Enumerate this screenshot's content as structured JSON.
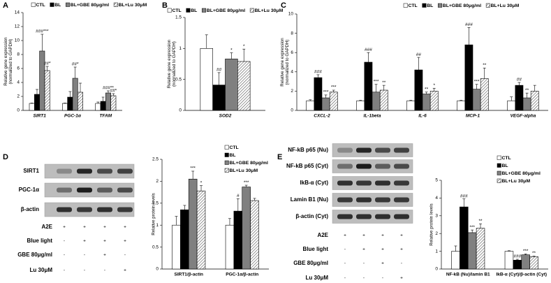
{
  "chart_data": [
    {
      "type": "bar",
      "panel": "A",
      "ylabel": [
        "Relative gene expression",
        "(normalized to GAPDH)"
      ],
      "categories": [
        "SIRT1",
        "PGC-1α",
        "TFAM"
      ],
      "italic_categories": true,
      "ylim": [
        0,
        14
      ],
      "yticks": [
        0,
        2,
        4,
        6,
        8,
        10,
        12,
        14
      ],
      "series": [
        {
          "name": "CTL",
          "color": "#ffffff",
          "values": [
            1,
            1,
            1
          ],
          "errors": [
            0.05,
            0.05,
            0.2
          ],
          "labels": [
            null,
            null,
            null
          ]
        },
        {
          "name": "BL",
          "color": "#000000",
          "values": [
            2.3,
            1.9,
            1.3
          ],
          "errors": [
            0.7,
            0.8,
            0.6
          ],
          "labels": [
            null,
            null,
            null
          ]
        },
        {
          "name": "BL+GBE 80μg/ml",
          "color": "#808080",
          "values": [
            8.5,
            4.6,
            2.5
          ],
          "errors": [
            2.4,
            1.6,
            0.3
          ],
          "labels": [
            "###***",
            "##*",
            "###**"
          ]
        },
        {
          "name": "BL+Lu 30μM",
          "color": "#ffffff",
          "hatch": true,
          "values": [
            5.7,
            2.6,
            2.1
          ],
          "errors": [
            0.6,
            1.3,
            0.3
          ],
          "labels": [
            "##*",
            null,
            "##*"
          ]
        }
      ]
    },
    {
      "type": "bar",
      "panel": "B",
      "ylabel": [
        "Relative gene expression",
        "(normalized to GAPDH)"
      ],
      "categories": [
        "SOD2"
      ],
      "italic_categories": true,
      "ylim": [
        0,
        1.5
      ],
      "yticks": [
        0,
        0.5,
        1,
        1.5
      ],
      "series": [
        {
          "name": "CTL",
          "color": "#ffffff",
          "values": [
            1.0
          ],
          "errors": [
            0.22
          ],
          "labels": [
            null
          ]
        },
        {
          "name": "BL",
          "color": "#000000",
          "values": [
            0.41
          ],
          "errors": [
            0.2
          ],
          "labels": [
            "##"
          ]
        },
        {
          "name": "BL+GBE 80μg/ml",
          "color": "#808080",
          "values": [
            0.83
          ],
          "errors": [
            0.1
          ],
          "labels": [
            "*"
          ]
        },
        {
          "name": "BL+Lu 30μM",
          "color": "#ffffff",
          "hatch": true,
          "values": [
            0.79
          ],
          "errors": [
            0.2
          ],
          "labels": [
            "*"
          ]
        }
      ]
    },
    {
      "type": "bar",
      "panel": "C",
      "ylabel": [
        "Relative gene expression",
        "(normalized to GAPDH)"
      ],
      "categories": [
        "CXCL-2",
        "IL-1beta",
        "IL-6",
        "MCP-1",
        "VEGF-alpha"
      ],
      "italic_categories": true,
      "ylim": [
        0,
        10
      ],
      "yticks": [
        0,
        2,
        4,
        6,
        8,
        10
      ],
      "series": [
        {
          "name": "CTL",
          "color": "#ffffff",
          "values": [
            1,
            1,
            1,
            1,
            1
          ],
          "errors": [
            0.1,
            0.05,
            0.05,
            0.05,
            0.4
          ],
          "labels": [
            null,
            null,
            null,
            null,
            null
          ]
        },
        {
          "name": "BL",
          "color": "#000000",
          "values": [
            3.4,
            5.0,
            4.2,
            6.8,
            2.6
          ],
          "errors": [
            0.3,
            1.0,
            1.3,
            1.8,
            0.3
          ],
          "labels": [
            "###",
            "###",
            "##",
            "###",
            "##"
          ]
        },
        {
          "name": "BL+GBE 80μg/ml",
          "color": "#808080",
          "values": [
            1.3,
            1.9,
            1.7,
            2.2,
            1.3
          ],
          "errors": [
            0.3,
            0.8,
            0.2,
            0.5,
            0.5
          ],
          "labels": [
            "***",
            "***",
            "**",
            "***",
            "**"
          ]
        },
        {
          "name": "BL+Lu 30μM",
          "color": "#ffffff",
          "hatch": true,
          "values": [
            1.9,
            2.1,
            2.0,
            3.3,
            2.0
          ],
          "errors": [
            0.2,
            0.5,
            0.3,
            1.1,
            0.6
          ],
          "labels": [
            "***",
            "**",
            "*",
            "**",
            null
          ]
        }
      ]
    },
    {
      "type": "bar",
      "panel": "D",
      "ylabel": [
        "Relative protein levels"
      ],
      "categories": [
        "SIRT1/β-actin",
        "PGC-1α/β-actin"
      ],
      "italic_categories": false,
      "ylim": [
        0,
        2.5
      ],
      "yticks": [
        0,
        0.5,
        1,
        1.5,
        2,
        2.5
      ],
      "series": [
        {
          "name": "CTL",
          "color": "#ffffff",
          "values": [
            1.0,
            1.0
          ],
          "errors": [
            0.2,
            0.15
          ],
          "labels": [
            null,
            null
          ]
        },
        {
          "name": "BL",
          "color": "#000000",
          "values": [
            1.35,
            1.32
          ],
          "errors": [
            0.1,
            0.28
          ],
          "labels": [
            null,
            "#"
          ]
        },
        {
          "name": "BL+GBE 80μg/ml",
          "color": "#808080",
          "values": [
            2.05,
            1.87
          ],
          "errors": [
            0.18,
            0.04
          ],
          "labels": [
            "***",
            "***"
          ]
        },
        {
          "name": "BL+Lu 30μM",
          "color": "#ffffff",
          "hatch": true,
          "values": [
            1.78,
            1.56
          ],
          "errors": [
            0.12,
            0.05
          ],
          "labels": [
            "*",
            null
          ]
        }
      ]
    },
    {
      "type": "bar",
      "panel": "E",
      "ylabel": [
        "Relative protein levels"
      ],
      "categories": [
        "NF-kB (Nu)/lamin B1",
        "IkB-α (Cyt)/β-actin (Cyt)"
      ],
      "italic_categories": false,
      "ylim": [
        0,
        5
      ],
      "yticks": [
        0,
        1,
        2,
        3,
        4,
        5
      ],
      "series": [
        {
          "name": "CTL",
          "color": "#ffffff",
          "values": [
            1.0,
            1.0
          ],
          "errors": [
            0.3,
            0.03
          ],
          "labels": [
            null,
            null
          ]
        },
        {
          "name": "BL",
          "color": "#000000",
          "values": [
            3.5,
            0.5
          ],
          "errors": [
            0.45,
            0.05
          ],
          "labels": [
            "###",
            "###"
          ]
        },
        {
          "name": "BL+GBE 80μg/ml",
          "color": "#808080",
          "values": [
            2.05,
            0.8
          ],
          "errors": [
            0.15,
            0.05
          ],
          "labels": [
            "***",
            "***"
          ]
        },
        {
          "name": "BL+Lu 30μM",
          "color": "#ffffff",
          "hatch": true,
          "values": [
            2.3,
            0.7
          ],
          "errors": [
            0.25,
            0.03
          ],
          "labels": [
            "**",
            "**"
          ]
        }
      ]
    }
  ],
  "blots": [
    {
      "proteins": [
        "SIRT1",
        "PGC-1α",
        "β-actin"
      ],
      "conditions": [
        {
          "label": "A2E",
          "marks": [
            "+",
            "+",
            "+",
            "+"
          ]
        },
        {
          "label": "Blue light",
          "marks": [
            "-",
            "+",
            "+",
            "+"
          ]
        },
        {
          "label": "GBE 80μg/ml",
          "marks": [
            "-",
            "-",
            "+",
            "-"
          ]
        },
        {
          "label": "Lu 30μM",
          "marks": [
            "-",
            "-",
            "-",
            "+"
          ]
        }
      ]
    },
    {
      "proteins": [
        "NF-kB p65 (Nu)",
        "NF-kB p65 (Cyt)",
        "IkB-α (Cyt)",
        "Lamin B1 (Nu)",
        "β-actin (Cyt)"
      ],
      "conditions": [
        {
          "label": "A2E",
          "marks": [
            "+",
            "+",
            "+",
            "+"
          ]
        },
        {
          "label": "Blue light",
          "marks": [
            "-",
            "+",
            "+",
            "+"
          ]
        },
        {
          "label": "GBE 80μg/ml",
          "marks": [
            "-",
            "-",
            "+",
            "-"
          ]
        },
        {
          "label": "Lu 30μM",
          "marks": [
            "-",
            "-",
            "-",
            "+"
          ]
        }
      ]
    }
  ]
}
